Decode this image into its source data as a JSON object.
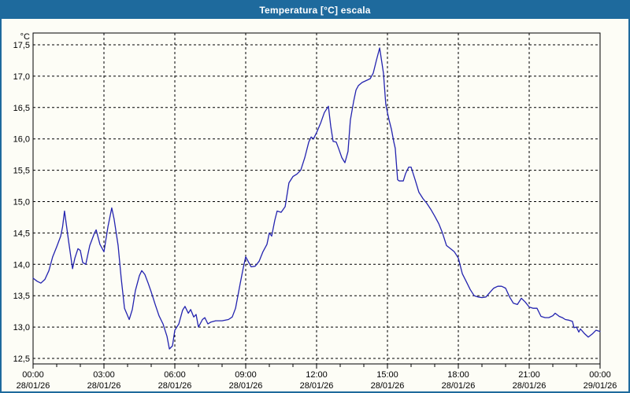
{
  "window": {
    "title": "Temperatura [°C] escala"
  },
  "colors": {
    "titlebar_bg": "#1e6a9d",
    "titlebar_text": "#ffffff",
    "frame_border": "#1e6a9d",
    "content_bg": "#fdfdf6",
    "plot_border": "#000000",
    "grid": "#000000",
    "tick_text": "#000000",
    "series_line": "#2323af"
  },
  "chart_data": {
    "type": "line",
    "title": "Temperatura [°C] escala",
    "grid": "dashed",
    "legend_position": "none",
    "y_axis": {
      "unit_label": "°C",
      "min": 12.5,
      "max": 17.5,
      "tick_step": 0.5,
      "tick_labels": [
        "17,5",
        "17,0",
        "16,5",
        "16,0",
        "15,5",
        "15,0",
        "14,5",
        "14,0",
        "13,5",
        "13,0",
        "12,5"
      ]
    },
    "x_axis": {
      "span_hours": 24,
      "major_tick_every_hours": 3,
      "minor_tick_every_hours": 1,
      "tick_labels": [
        {
          "time": "00:00",
          "date": "28/01/26"
        },
        {
          "time": "03:00",
          "date": "28/01/26"
        },
        {
          "time": "06:00",
          "date": "28/01/26"
        },
        {
          "time": "09:00",
          "date": "28/01/26"
        },
        {
          "time": "12:00",
          "date": "28/01/26"
        },
        {
          "time": "15:00",
          "date": "28/01/26"
        },
        {
          "time": "18:00",
          "date": "28/01/26"
        },
        {
          "time": "21:00",
          "date": "28/01/26"
        },
        {
          "time": "00:00",
          "date": "29/01/26"
        }
      ]
    },
    "series": [
      {
        "name": "Temperatura",
        "color": "#2323af",
        "points": [
          [
            0.0,
            13.78
          ],
          [
            0.17,
            13.73
          ],
          [
            0.33,
            13.7
          ],
          [
            0.5,
            13.76
          ],
          [
            0.67,
            13.9
          ],
          [
            0.83,
            14.12
          ],
          [
            1.0,
            14.28
          ],
          [
            1.17,
            14.45
          ],
          [
            1.25,
            14.6
          ],
          [
            1.33,
            14.85
          ],
          [
            1.5,
            14.38
          ],
          [
            1.67,
            13.93
          ],
          [
            1.77,
            14.1
          ],
          [
            1.9,
            14.25
          ],
          [
            2.0,
            14.22
          ],
          [
            2.1,
            14.03
          ],
          [
            2.23,
            14.0
          ],
          [
            2.4,
            14.3
          ],
          [
            2.6,
            14.5
          ],
          [
            2.67,
            14.55
          ],
          [
            2.83,
            14.32
          ],
          [
            3.0,
            14.2
          ],
          [
            3.17,
            14.6
          ],
          [
            3.33,
            14.9
          ],
          [
            3.43,
            14.72
          ],
          [
            3.6,
            14.3
          ],
          [
            3.73,
            13.78
          ],
          [
            3.87,
            13.3
          ],
          [
            4.07,
            13.12
          ],
          [
            4.2,
            13.28
          ],
          [
            4.33,
            13.58
          ],
          [
            4.5,
            13.82
          ],
          [
            4.6,
            13.9
          ],
          [
            4.73,
            13.84
          ],
          [
            4.87,
            13.7
          ],
          [
            5.0,
            13.56
          ],
          [
            5.17,
            13.36
          ],
          [
            5.33,
            13.18
          ],
          [
            5.5,
            13.05
          ],
          [
            5.67,
            12.85
          ],
          [
            5.77,
            12.65
          ],
          [
            5.9,
            12.7
          ],
          [
            6.0,
            12.95
          ],
          [
            6.17,
            13.05
          ],
          [
            6.33,
            13.27
          ],
          [
            6.43,
            13.33
          ],
          [
            6.57,
            13.22
          ],
          [
            6.67,
            13.28
          ],
          [
            6.8,
            13.16
          ],
          [
            6.9,
            13.2
          ],
          [
            7.0,
            13.0
          ],
          [
            7.17,
            13.12
          ],
          [
            7.27,
            13.15
          ],
          [
            7.4,
            13.05
          ],
          [
            7.53,
            13.08
          ],
          [
            7.73,
            13.1
          ],
          [
            8.0,
            13.1
          ],
          [
            8.27,
            13.12
          ],
          [
            8.43,
            13.16
          ],
          [
            8.57,
            13.3
          ],
          [
            8.67,
            13.5
          ],
          [
            8.77,
            13.7
          ],
          [
            8.9,
            13.95
          ],
          [
            9.0,
            14.12
          ],
          [
            9.1,
            14.05
          ],
          [
            9.23,
            13.96
          ],
          [
            9.4,
            13.97
          ],
          [
            9.57,
            14.05
          ],
          [
            9.73,
            14.2
          ],
          [
            9.9,
            14.32
          ],
          [
            10.0,
            14.5
          ],
          [
            10.1,
            14.45
          ],
          [
            10.23,
            14.7
          ],
          [
            10.33,
            14.85
          ],
          [
            10.5,
            14.83
          ],
          [
            10.67,
            14.92
          ],
          [
            10.83,
            15.3
          ],
          [
            11.0,
            15.4
          ],
          [
            11.17,
            15.44
          ],
          [
            11.33,
            15.5
          ],
          [
            11.5,
            15.7
          ],
          [
            11.67,
            15.95
          ],
          [
            11.77,
            16.03
          ],
          [
            11.87,
            16.0
          ],
          [
            12.0,
            16.1
          ],
          [
            12.17,
            16.25
          ],
          [
            12.33,
            16.42
          ],
          [
            12.5,
            16.52
          ],
          [
            12.6,
            16.2
          ],
          [
            12.7,
            15.96
          ],
          [
            12.83,
            15.95
          ],
          [
            12.93,
            15.85
          ],
          [
            13.07,
            15.7
          ],
          [
            13.2,
            15.62
          ],
          [
            13.33,
            15.8
          ],
          [
            13.43,
            16.3
          ],
          [
            13.57,
            16.6
          ],
          [
            13.67,
            16.78
          ],
          [
            13.77,
            16.85
          ],
          [
            13.93,
            16.9
          ],
          [
            14.1,
            16.93
          ],
          [
            14.27,
            16.96
          ],
          [
            14.4,
            17.05
          ],
          [
            14.53,
            17.25
          ],
          [
            14.67,
            17.45
          ],
          [
            14.77,
            17.2
          ],
          [
            14.83,
            17.05
          ],
          [
            14.93,
            16.55
          ],
          [
            15.0,
            16.42
          ],
          [
            15.07,
            16.3
          ],
          [
            15.17,
            16.15
          ],
          [
            15.27,
            15.95
          ],
          [
            15.33,
            15.85
          ],
          [
            15.43,
            15.35
          ],
          [
            15.5,
            15.33
          ],
          [
            15.67,
            15.33
          ],
          [
            15.77,
            15.45
          ],
          [
            15.9,
            15.55
          ],
          [
            16.0,
            15.55
          ],
          [
            16.17,
            15.35
          ],
          [
            16.33,
            15.15
          ],
          [
            16.5,
            15.05
          ],
          [
            16.67,
            14.97
          ],
          [
            16.83,
            14.88
          ],
          [
            17.0,
            14.77
          ],
          [
            17.17,
            14.65
          ],
          [
            17.33,
            14.5
          ],
          [
            17.5,
            14.3
          ],
          [
            17.67,
            14.25
          ],
          [
            17.83,
            14.2
          ],
          [
            18.0,
            14.1
          ],
          [
            18.17,
            13.85
          ],
          [
            18.33,
            13.73
          ],
          [
            18.5,
            13.6
          ],
          [
            18.67,
            13.5
          ],
          [
            18.83,
            13.48
          ],
          [
            19.0,
            13.47
          ],
          [
            19.17,
            13.48
          ],
          [
            19.33,
            13.55
          ],
          [
            19.5,
            13.62
          ],
          [
            19.67,
            13.65
          ],
          [
            19.83,
            13.65
          ],
          [
            20.0,
            13.62
          ],
          [
            20.17,
            13.48
          ],
          [
            20.33,
            13.38
          ],
          [
            20.5,
            13.36
          ],
          [
            20.67,
            13.46
          ],
          [
            20.83,
            13.4
          ],
          [
            21.0,
            13.32
          ],
          [
            21.17,
            13.3
          ],
          [
            21.33,
            13.3
          ],
          [
            21.5,
            13.17
          ],
          [
            21.67,
            13.15
          ],
          [
            21.83,
            13.15
          ],
          [
            22.0,
            13.18
          ],
          [
            22.1,
            13.22
          ],
          [
            22.27,
            13.17
          ],
          [
            22.4,
            13.15
          ],
          [
            22.53,
            13.12
          ],
          [
            22.67,
            13.11
          ],
          [
            22.83,
            13.09
          ],
          [
            22.9,
            12.99
          ],
          [
            23.0,
            13.0
          ],
          [
            23.1,
            12.92
          ],
          [
            23.17,
            12.97
          ],
          [
            23.33,
            12.9
          ],
          [
            23.5,
            12.84
          ],
          [
            23.67,
            12.89
          ],
          [
            23.83,
            12.95
          ],
          [
            24.0,
            12.93
          ]
        ]
      }
    ]
  }
}
